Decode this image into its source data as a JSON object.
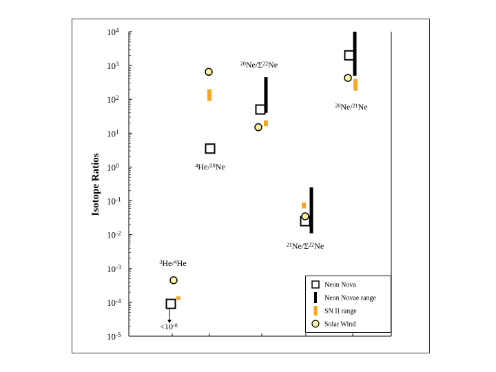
{
  "chart_data": {
    "type": "scatter",
    "title": "",
    "xlabel": "",
    "ylabel": "Isotope Ratios",
    "yscale": "log",
    "ylim": [
      1e-05,
      10000.0
    ],
    "grid": false,
    "legend_position": "bottom-right",
    "y_ticks": [
      {
        "value": 10000.0,
        "base": "10",
        "exp": "4"
      },
      {
        "value": 1000.0,
        "base": "10",
        "exp": "3"
      },
      {
        "value": 100.0,
        "base": "10",
        "exp": "2"
      },
      {
        "value": 10.0,
        "base": "10",
        "exp": "1"
      },
      {
        "value": 1.0,
        "base": "10",
        "exp": "0"
      },
      {
        "value": 0.1,
        "base": "10",
        "exp": "-1"
      },
      {
        "value": 0.01,
        "base": "10",
        "exp": "-2"
      },
      {
        "value": 0.001,
        "base": "10",
        "exp": "-3"
      },
      {
        "value": 0.0001,
        "base": "10",
        "exp": "-4"
      },
      {
        "value": 1e-05,
        "base": "10",
        "exp": "-5"
      }
    ],
    "groups": [
      {
        "name_parts": [
          {
            "t": "3",
            "sup": true
          },
          {
            "t": "He/"
          },
          {
            "t": "4",
            "sup": true
          },
          {
            "t": "He"
          }
        ],
        "neon_nova": 9e-05,
        "neon_nova_upper_limit": true,
        "neon_nova_note_parts": [
          {
            "t": "<10"
          },
          {
            "t": "-8",
            "sup": true
          }
        ],
        "neon_novae_range": null,
        "sn_ii_range": [
          0.00012,
          0.00015
        ],
        "solar_wind": 0.00045
      },
      {
        "name_parts": [
          {
            "t": "4",
            "sup": true
          },
          {
            "t": "He/"
          },
          {
            "t": "20",
            "sup": true
          },
          {
            "t": "Ne"
          }
        ],
        "neon_nova": 3.5,
        "neon_novae_range": null,
        "sn_ii_range": [
          90,
          200
        ],
        "solar_wind": 650
      },
      {
        "name_parts": [
          {
            "t": "20",
            "sup": true
          },
          {
            "t": "Ne/Σ"
          },
          {
            "t": "22",
            "sup": true
          },
          {
            "t": "Ne"
          }
        ],
        "neon_nova": 50,
        "neon_novae_range": [
          40,
          450
        ],
        "sn_ii_range": [
          16,
          24
        ],
        "solar_wind": 15
      },
      {
        "name_parts": [
          {
            "t": "21",
            "sup": true
          },
          {
            "t": "Ne/Σ"
          },
          {
            "t": "22",
            "sup": true
          },
          {
            "t": "Ne"
          }
        ],
        "neon_nova": 0.025,
        "neon_novae_range": [
          0.011,
          0.25
        ],
        "sn_ii_range": [
          0.06,
          0.09
        ],
        "solar_wind": 0.035
      },
      {
        "name_parts": [
          {
            "t": "20",
            "sup": true
          },
          {
            "t": "Ne/"
          },
          {
            "t": "21",
            "sup": true
          },
          {
            "t": "Ne"
          }
        ],
        "neon_nova": 2000,
        "neon_novae_range": [
          500,
          10000
        ],
        "sn_ii_range": [
          180,
          400
        ],
        "solar_wind": 430
      }
    ],
    "legend": [
      {
        "key": "neon_nova",
        "label": "Neon Nova"
      },
      {
        "key": "neon_novae_range",
        "label": "Neon Novae range"
      },
      {
        "key": "sn_ii_range",
        "label": "SN II range"
      },
      {
        "key": "solar_wind",
        "label": "Solar Wind"
      }
    ],
    "colors": {
      "neon_nova": "#000000",
      "neon_novae_range": "#000000",
      "sn_ii_range": "#f5a623",
      "solar_wind_fill": "#fff59d",
      "solar_wind_stroke": "#000000",
      "frame": "#333333"
    }
  }
}
